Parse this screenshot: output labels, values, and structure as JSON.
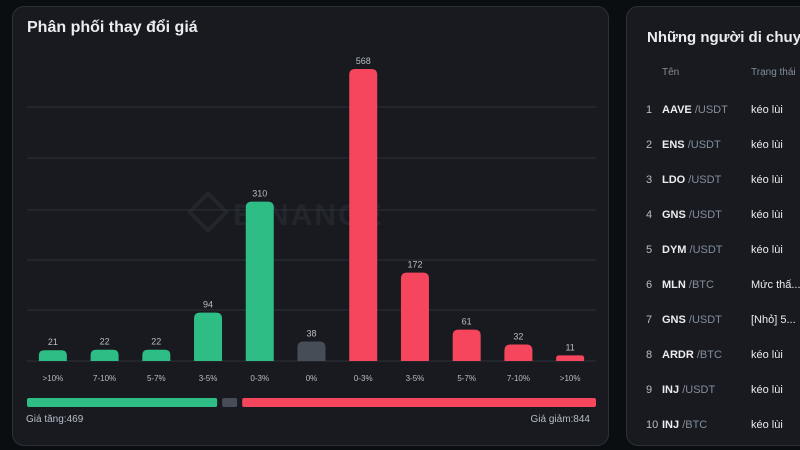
{
  "distribution": {
    "title": "Phân phối thay đổi giá",
    "watermark": "BINANCE",
    "rise_label": "Giá tăng:469",
    "fall_label": "Giá giảm:844",
    "colors": {
      "up": "#2ebd85",
      "flat": "#474d57",
      "down": "#f6465d",
      "grid": "#2b3139"
    }
  },
  "chart_data": {
    "type": "bar",
    "categories": [
      ">10%",
      "7-10%",
      "5-7%",
      "3-5%",
      "0-3%",
      "0%",
      "0-3%",
      "3-5%",
      "5-7%",
      "7-10%",
      ">10%"
    ],
    "values": [
      21,
      22,
      22,
      94,
      310,
      38,
      568,
      172,
      61,
      32,
      11
    ],
    "groups": [
      "up",
      "up",
      "up",
      "up",
      "up",
      "flat",
      "down",
      "down",
      "down",
      "down",
      "down"
    ],
    "ratio_bar": {
      "up": 469,
      "flat": 38,
      "down": 844
    },
    "grid": true,
    "ylim": [
      0,
      600
    ]
  },
  "movers": {
    "title": "Những người di chuyển",
    "col_name": "Tên",
    "col_status": "Trạng thái",
    "rows": [
      {
        "idx": "1",
        "base": "AAVE",
        "quote": "/USDT",
        "status": "kéo lùi"
      },
      {
        "idx": "2",
        "base": "ENS",
        "quote": "/USDT",
        "status": "kéo lùi"
      },
      {
        "idx": "3",
        "base": "LDO",
        "quote": "/USDT",
        "status": "kéo lùi"
      },
      {
        "idx": "4",
        "base": "GNS",
        "quote": "/USDT",
        "status": "kéo lùi"
      },
      {
        "idx": "5",
        "base": "DYM",
        "quote": "/USDT",
        "status": "kéo lùi"
      },
      {
        "idx": "6",
        "base": "MLN",
        "quote": "/BTC",
        "status": "Mức thấ..."
      },
      {
        "idx": "7",
        "base": "GNS",
        "quote": "/USDT",
        "status": "[Nhỏ] 5..."
      },
      {
        "idx": "8",
        "base": "ARDR",
        "quote": "/BTC",
        "status": "kéo lùi"
      },
      {
        "idx": "9",
        "base": "INJ",
        "quote": "/USDT",
        "status": "kéo lùi"
      },
      {
        "idx": "10",
        "base": "INJ",
        "quote": "/BTC",
        "status": "kéo lùi"
      }
    ]
  }
}
